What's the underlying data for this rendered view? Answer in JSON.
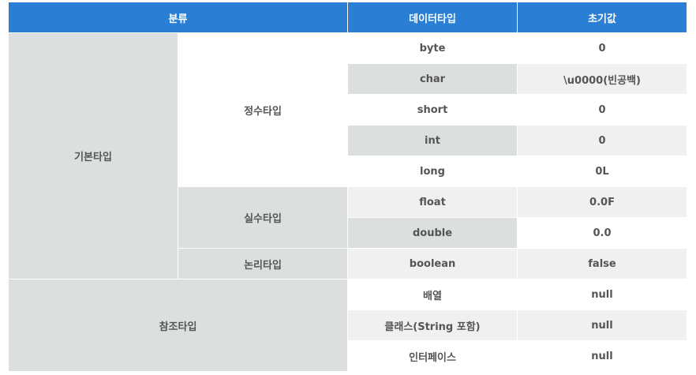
{
  "header": {
    "category": "분류",
    "datatype": "데이터타입",
    "initial": "초기값"
  },
  "groups": {
    "primitive": "기본타입",
    "integer": "정수타입",
    "real": "실수타입",
    "logical": "논리타입",
    "reference": "참조타입"
  },
  "rows": [
    {
      "type": "byte",
      "value": "0"
    },
    {
      "type": "char",
      "value": "\\u0000(빈공백)"
    },
    {
      "type": "short",
      "value": "0"
    },
    {
      "type": "int",
      "value": "0"
    },
    {
      "type": "long",
      "value": "0L"
    },
    {
      "type": "float",
      "value": "0.0F"
    },
    {
      "type": "double",
      "value": "0.0"
    },
    {
      "type": "boolean",
      "value": "false"
    },
    {
      "type": "배열",
      "value": "null"
    },
    {
      "type": "클래스(String 포함)",
      "value": "null"
    },
    {
      "type": "인터페이스",
      "value": "null"
    }
  ]
}
